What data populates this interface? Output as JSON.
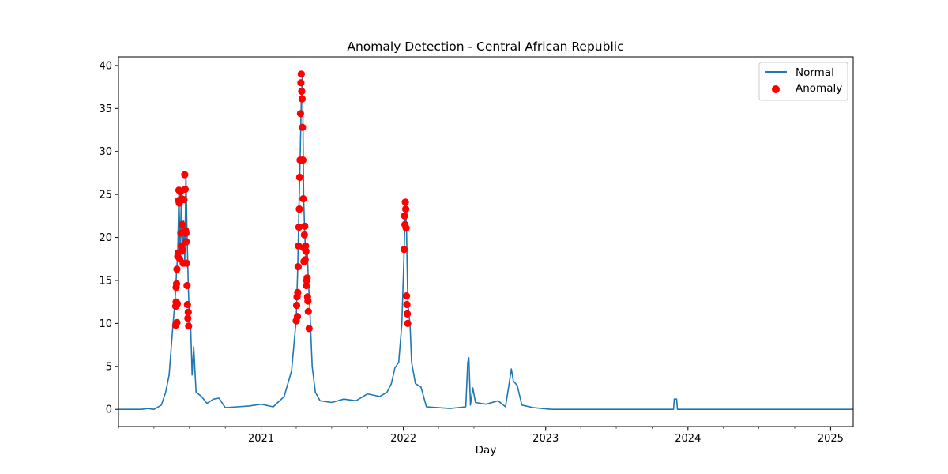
{
  "chart_data": {
    "type": "line",
    "title": "Anomaly Detection - Central African Republic",
    "xlabel": "Day",
    "ylabel": "",
    "x_type": "date",
    "xlim": [
      "2020-01-01",
      "2025-02-28"
    ],
    "ylim": [
      -2,
      41
    ],
    "y_ticks": [
      0,
      5,
      10,
      15,
      20,
      25,
      30,
      35,
      40
    ],
    "x_ticks": [
      {
        "date": "2021-01-01",
        "label": "2021"
      },
      {
        "date": "2022-01-01",
        "label": "2022"
      },
      {
        "date": "2023-01-01",
        "label": "2023"
      },
      {
        "date": "2024-01-01",
        "label": "2024"
      },
      {
        "date": "2025-01-01",
        "label": "2025"
      }
    ],
    "grid": false,
    "legend_position": "top-right",
    "colors": {
      "normal": "#1f77b4",
      "anomaly": "#ff0000"
    },
    "series": [
      {
        "name": "Normal",
        "kind": "line",
        "points": [
          [
            "2020-01-01",
            0
          ],
          [
            "2020-03-01",
            0
          ],
          [
            "2020-03-15",
            0.1
          ],
          [
            "2020-04-01",
            0
          ],
          [
            "2020-04-20",
            0.5
          ],
          [
            "2020-05-01",
            2
          ],
          [
            "2020-05-10",
            4
          ],
          [
            "2020-05-15",
            7
          ],
          [
            "2020-05-20",
            10
          ],
          [
            "2020-05-25",
            12.5
          ],
          [
            "2020-05-29",
            16
          ],
          [
            "2020-06-01",
            18
          ],
          [
            "2020-06-04",
            25.5
          ],
          [
            "2020-06-07",
            17.5
          ],
          [
            "2020-06-10",
            24
          ],
          [
            "2020-06-13",
            18
          ],
          [
            "2020-06-16",
            22
          ],
          [
            "2020-06-19",
            17
          ],
          [
            "2020-06-22",
            27.3
          ],
          [
            "2020-06-25",
            20.5
          ],
          [
            "2020-06-28",
            14.5
          ],
          [
            "2020-07-01",
            10.5
          ],
          [
            "2020-07-04",
            9.8
          ],
          [
            "2020-07-08",
            4
          ],
          [
            "2020-07-12",
            7.3
          ],
          [
            "2020-07-18",
            2
          ],
          [
            "2020-08-01",
            1.5
          ],
          [
            "2020-08-15",
            0.7
          ],
          [
            "2020-09-01",
            1.2
          ],
          [
            "2020-09-15",
            1.3
          ],
          [
            "2020-10-01",
            0.2
          ],
          [
            "2020-11-01",
            0.3
          ],
          [
            "2020-12-01",
            0.4
          ],
          [
            "2021-01-01",
            0.6
          ],
          [
            "2021-02-01",
            0.3
          ],
          [
            "2021-03-01",
            1.5
          ],
          [
            "2021-03-20",
            4.5
          ],
          [
            "2021-04-01",
            10.5
          ],
          [
            "2021-04-05",
            16.5
          ],
          [
            "2021-04-08",
            23.3
          ],
          [
            "2021-04-11",
            29
          ],
          [
            "2021-04-14",
            36
          ],
          [
            "2021-04-17",
            39
          ],
          [
            "2021-04-20",
            24.5
          ],
          [
            "2021-04-23",
            20.3
          ],
          [
            "2021-04-26",
            17.3
          ],
          [
            "2021-04-29",
            19
          ],
          [
            "2021-05-02",
            15
          ],
          [
            "2021-05-05",
            12.7
          ],
          [
            "2021-05-08",
            9.4
          ],
          [
            "2021-05-12",
            5
          ],
          [
            "2021-05-20",
            2
          ],
          [
            "2021-06-01",
            1
          ],
          [
            "2021-07-01",
            0.8
          ],
          [
            "2021-08-01",
            1.2
          ],
          [
            "2021-09-01",
            1
          ],
          [
            "2021-10-01",
            1.8
          ],
          [
            "2021-11-01",
            1.5
          ],
          [
            "2021-11-20",
            2
          ],
          [
            "2021-12-01",
            3
          ],
          [
            "2021-12-10",
            4.8
          ],
          [
            "2021-12-20",
            5.5
          ],
          [
            "2021-12-28",
            10
          ],
          [
            "2022-01-03",
            18.5
          ],
          [
            "2022-01-06",
            24
          ],
          [
            "2022-01-09",
            21
          ],
          [
            "2022-01-12",
            13
          ],
          [
            "2022-01-15",
            11
          ],
          [
            "2022-01-18",
            10
          ],
          [
            "2022-01-22",
            5.5
          ],
          [
            "2022-02-01",
            3
          ],
          [
            "2022-02-15",
            2.6
          ],
          [
            "2022-03-01",
            0.3
          ],
          [
            "2022-04-01",
            0.2
          ],
          [
            "2022-05-01",
            0.1
          ],
          [
            "2022-06-10",
            0.3
          ],
          [
            "2022-06-15",
            5.5
          ],
          [
            "2022-06-18",
            6
          ],
          [
            "2022-06-22",
            0.5
          ],
          [
            "2022-06-28",
            2.5
          ],
          [
            "2022-07-05",
            0.8
          ],
          [
            "2022-08-01",
            0.6
          ],
          [
            "2022-09-01",
            1
          ],
          [
            "2022-09-20",
            0.3
          ],
          [
            "2022-10-05",
            4.7
          ],
          [
            "2022-10-10",
            3.3
          ],
          [
            "2022-10-20",
            2.8
          ],
          [
            "2022-11-01",
            0.5
          ],
          [
            "2022-12-01",
            0.2
          ],
          [
            "2023-01-15",
            0
          ],
          [
            "2023-11-25",
            0
          ],
          [
            "2023-11-27",
            1.2
          ],
          [
            "2023-12-03",
            1.2
          ],
          [
            "2023-12-05",
            0
          ],
          [
            "2025-02-28",
            0
          ]
        ]
      },
      {
        "name": "Anomaly",
        "kind": "scatter",
        "points": [
          [
            "2020-05-27",
            9.8
          ],
          [
            "2020-05-27",
            12
          ],
          [
            "2020-05-28",
            12.5
          ],
          [
            "2020-05-28",
            14.2
          ],
          [
            "2020-05-29",
            14.6
          ],
          [
            "2020-05-30",
            10.1
          ],
          [
            "2020-05-30",
            16.3
          ],
          [
            "2020-05-31",
            12.3
          ],
          [
            "2020-06-01",
            17.8
          ],
          [
            "2020-06-02",
            18.2
          ],
          [
            "2020-06-03",
            24.3
          ],
          [
            "2020-06-04",
            25.5
          ],
          [
            "2020-06-05",
            24
          ],
          [
            "2020-06-06",
            17.5
          ],
          [
            "2020-06-08",
            25.3
          ],
          [
            "2020-06-09",
            20.5
          ],
          [
            "2020-06-10",
            19
          ],
          [
            "2020-06-11",
            24.5
          ],
          [
            "2020-06-12",
            21.5
          ],
          [
            "2020-06-13",
            18.5
          ],
          [
            "2020-06-15",
            17
          ],
          [
            "2020-06-17",
            24.4
          ],
          [
            "2020-06-19",
            27.3
          ],
          [
            "2020-06-20",
            25.6
          ],
          [
            "2020-06-21",
            20.8
          ],
          [
            "2020-06-22",
            20.5
          ],
          [
            "2020-06-23",
            19.5
          ],
          [
            "2020-06-24",
            17
          ],
          [
            "2020-06-25",
            14.4
          ],
          [
            "2020-06-26",
            12.2
          ],
          [
            "2020-06-27",
            10.6
          ],
          [
            "2020-06-28",
            11.3
          ],
          [
            "2020-06-29",
            9.7
          ],
          [
            "2021-04-01",
            10.3
          ],
          [
            "2021-04-02",
            12.1
          ],
          [
            "2021-04-03",
            13.1
          ],
          [
            "2021-04-04",
            10.8
          ],
          [
            "2021-04-05",
            13.6
          ],
          [
            "2021-04-06",
            16.6
          ],
          [
            "2021-04-07",
            19
          ],
          [
            "2021-04-08",
            21.2
          ],
          [
            "2021-04-09",
            23.3
          ],
          [
            "2021-04-10",
            27
          ],
          [
            "2021-04-11",
            29
          ],
          [
            "2021-04-12",
            34.4
          ],
          [
            "2021-04-13",
            38
          ],
          [
            "2021-04-14",
            39
          ],
          [
            "2021-04-15",
            37
          ],
          [
            "2021-04-16",
            36.1
          ],
          [
            "2021-04-17",
            32.8
          ],
          [
            "2021-04-18",
            29
          ],
          [
            "2021-04-19",
            24.5
          ],
          [
            "2021-04-20",
            18.8
          ],
          [
            "2021-04-21",
            17.2
          ],
          [
            "2021-04-22",
            20.3
          ],
          [
            "2021-04-23",
            21.3
          ],
          [
            "2021-04-24",
            17.4
          ],
          [
            "2021-04-25",
            19
          ],
          [
            "2021-04-26",
            18.4
          ],
          [
            "2021-04-27",
            14.4
          ],
          [
            "2021-04-28",
            15
          ],
          [
            "2021-04-29",
            15.3
          ],
          [
            "2021-04-30",
            13.1
          ],
          [
            "2021-05-01",
            12.6
          ],
          [
            "2021-05-02",
            11.4
          ],
          [
            "2021-05-04",
            9.4
          ],
          [
            "2022-01-03",
            18.6
          ],
          [
            "2022-01-04",
            22.5
          ],
          [
            "2022-01-05",
            21.5
          ],
          [
            "2022-01-06",
            24.1
          ],
          [
            "2022-01-07",
            23.3
          ],
          [
            "2022-01-08",
            21.1
          ],
          [
            "2022-01-09",
            13.2
          ],
          [
            "2022-01-10",
            12.2
          ],
          [
            "2022-01-11",
            11.1
          ],
          [
            "2022-01-12",
            10
          ]
        ]
      }
    ]
  }
}
